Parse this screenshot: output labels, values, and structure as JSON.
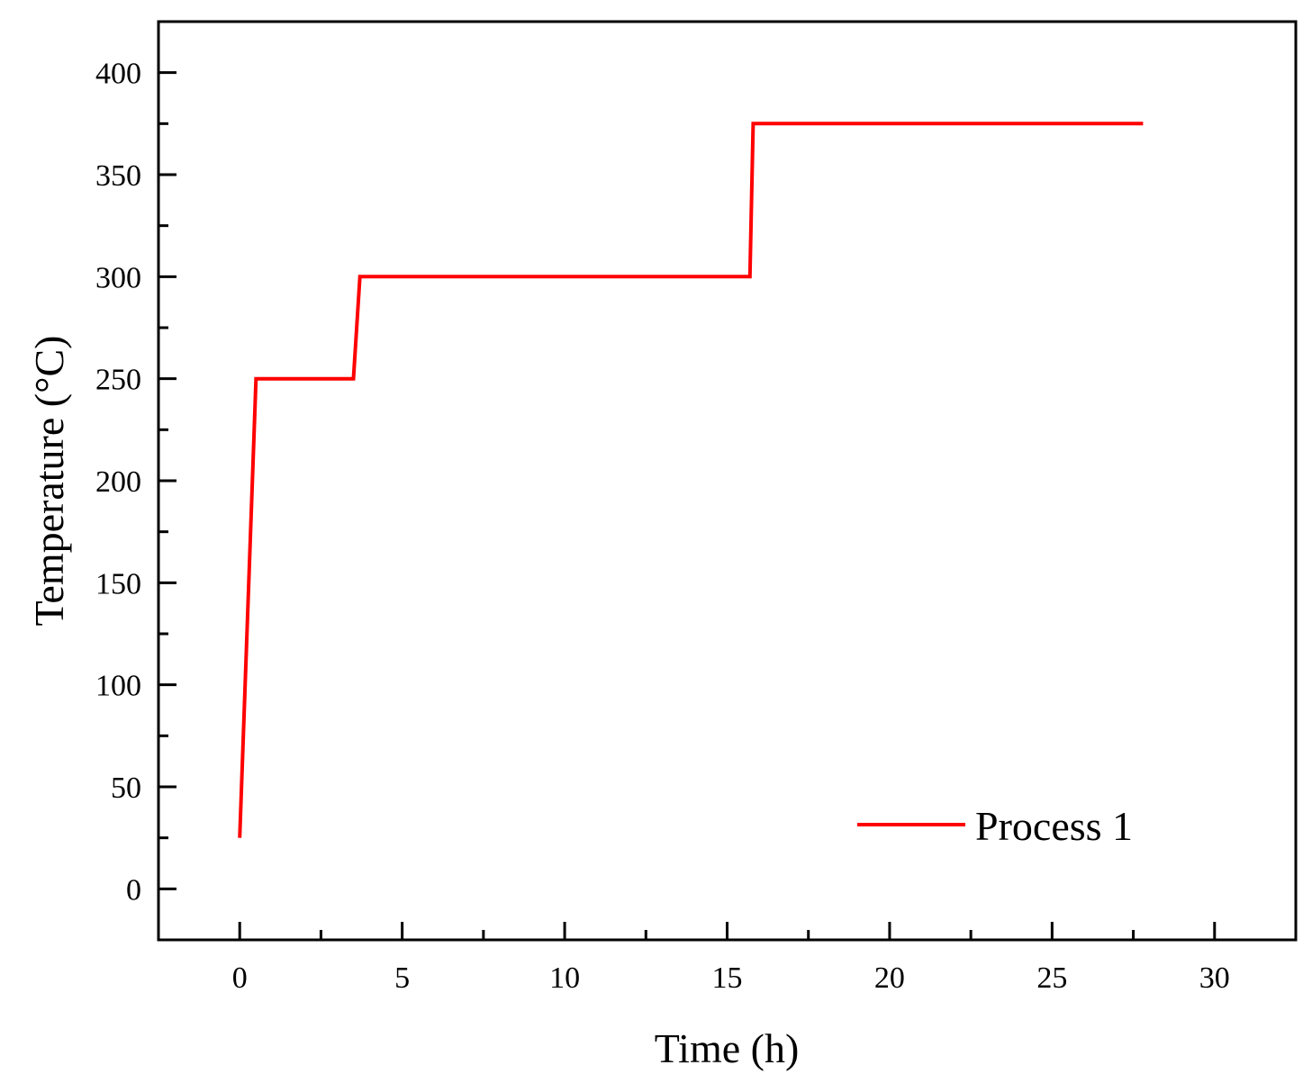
{
  "chart_data": {
    "type": "line",
    "xlabel": "Time (h)",
    "ylabel": "Temperature (°C)",
    "xlim": [
      -2.5,
      32.5
    ],
    "ylim": [
      -25,
      425
    ],
    "x_ticks": [
      0,
      5,
      10,
      15,
      20,
      25,
      30
    ],
    "x_tick_labels": [
      "0",
      "5",
      "10",
      "15",
      "20",
      "25",
      "30"
    ],
    "y_ticks": [
      0,
      50,
      100,
      150,
      200,
      250,
      300,
      350,
      400
    ],
    "y_tick_labels": [
      "0",
      "50",
      "100",
      "150",
      "200",
      "250",
      "300",
      "350",
      "400"
    ],
    "x_minor_step": 2.5,
    "y_minor_step": 25,
    "grid": false,
    "legend_position": "bottom-right",
    "series": [
      {
        "name": "Process 1",
        "color": "#ff0000",
        "x": [
          0,
          0.5,
          3.5,
          3.7,
          15.7,
          15.8,
          27.8
        ],
        "y": [
          25,
          250,
          250,
          300,
          300,
          375,
          375
        ]
      }
    ]
  }
}
